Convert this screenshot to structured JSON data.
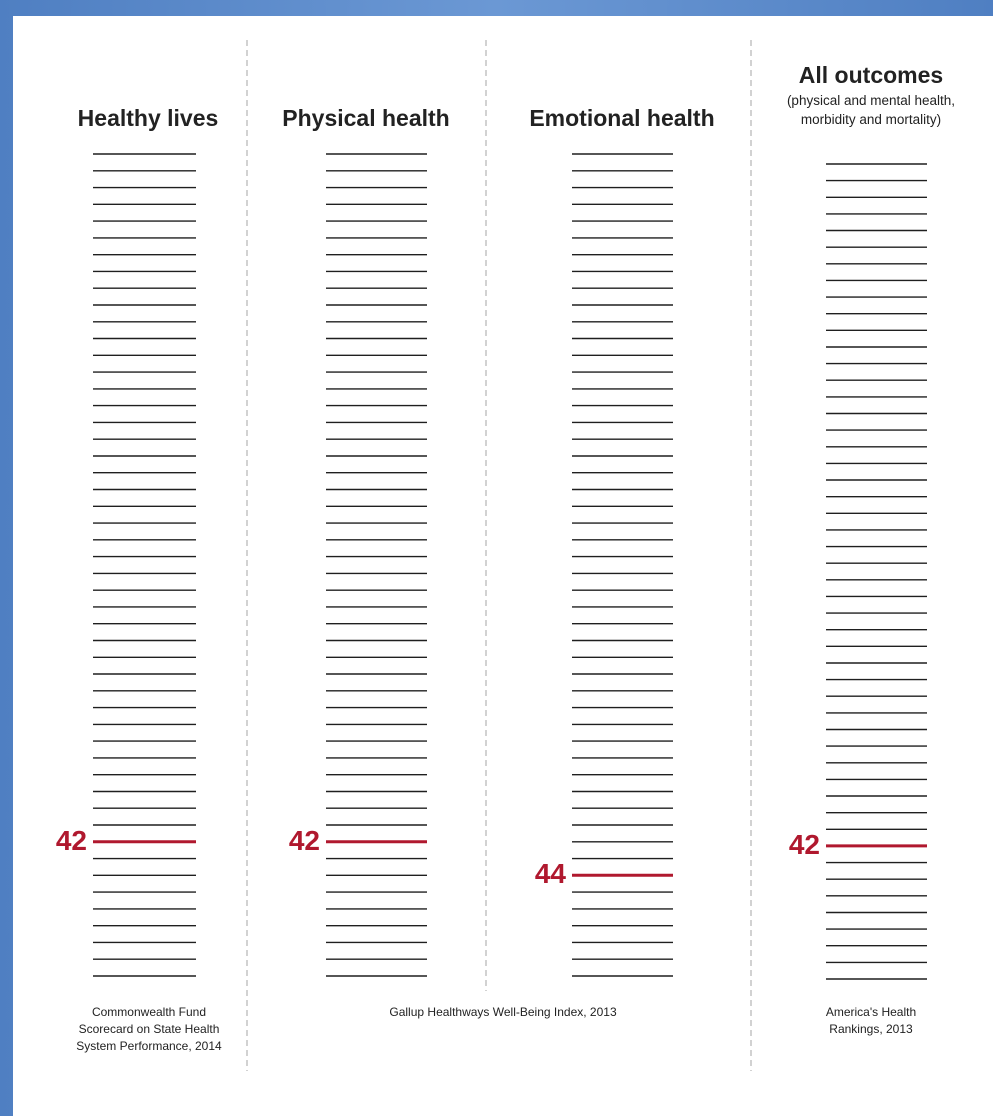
{
  "colors": {
    "accent": "#b0182e",
    "rule": "#1f1f1f",
    "text": "#222222",
    "divider": "#b5b5b5"
  },
  "chart_data": {
    "type": "table",
    "panels": [
      {
        "title": "Healthy lives",
        "subtitle": "",
        "rank": 42,
        "total_lines": 50,
        "source": "Commonwealth Fund Scorecard on State Health System Performance, 2014"
      },
      {
        "title": "Physical health",
        "subtitle": "",
        "rank": 42,
        "total_lines": 50,
        "source": ""
      },
      {
        "title": "Emotional health",
        "subtitle": "",
        "rank": 44,
        "total_lines": 50,
        "source": ""
      },
      {
        "title": "All outcomes",
        "subtitle": "(physical and mental health, morbidity and mortality)",
        "rank": 42,
        "total_lines": 50,
        "source": "America's Health Rankings, 2013"
      }
    ],
    "shared_source": "Gallup Healthways Well-Being Index, 2013"
  }
}
